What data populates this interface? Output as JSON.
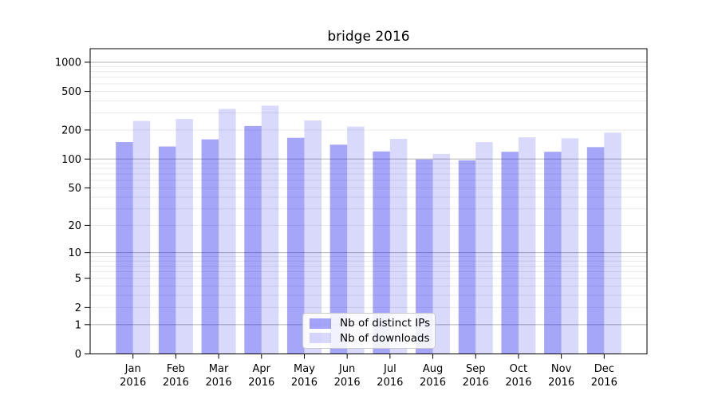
{
  "chart_data": {
    "type": "bar",
    "title": "bridge 2016",
    "categories": [
      "Jan 2016",
      "Feb 2016",
      "Mar 2016",
      "Apr 2016",
      "May 2016",
      "Jun 2016",
      "Jul 2016",
      "Aug 2016",
      "Sep 2016",
      "Oct 2016",
      "Nov 2016",
      "Dec 2016"
    ],
    "series": [
      {
        "name": "Nb of distinct IPs",
        "color": "rgba(0,0,238,0.35)",
        "values": [
          150,
          135,
          160,
          220,
          166,
          141,
          120,
          99,
          97,
          119,
          119,
          133
        ]
      },
      {
        "name": "Nb of downloads",
        "color": "rgba(0,0,238,0.15)",
        "values": [
          248,
          260,
          330,
          357,
          251,
          217,
          162,
          113,
          150,
          168,
          164,
          188
        ]
      }
    ],
    "xlabel": "",
    "ylabel": "",
    "yticks": [
      0,
      1,
      2,
      5,
      10,
      20,
      50,
      100,
      200,
      500,
      1000
    ],
    "ylim": [
      0,
      1378
    ],
    "xlim": [
      -1,
      12
    ],
    "scale": "log1p",
    "grid": "both",
    "legend_position": "lower center inside plot",
    "bar_group": "two bars side by side per month, distinct IPs left, downloads right"
  },
  "colors": {
    "background": "#ffffff",
    "bar_distinct_ips": "rgba(0,0,238,0.35)",
    "bar_downloads": "rgba(0,0,238,0.15)",
    "grid_minor": "#e9e9e9",
    "grid_decade": "#b3b3b3",
    "axis": "#000000"
  }
}
